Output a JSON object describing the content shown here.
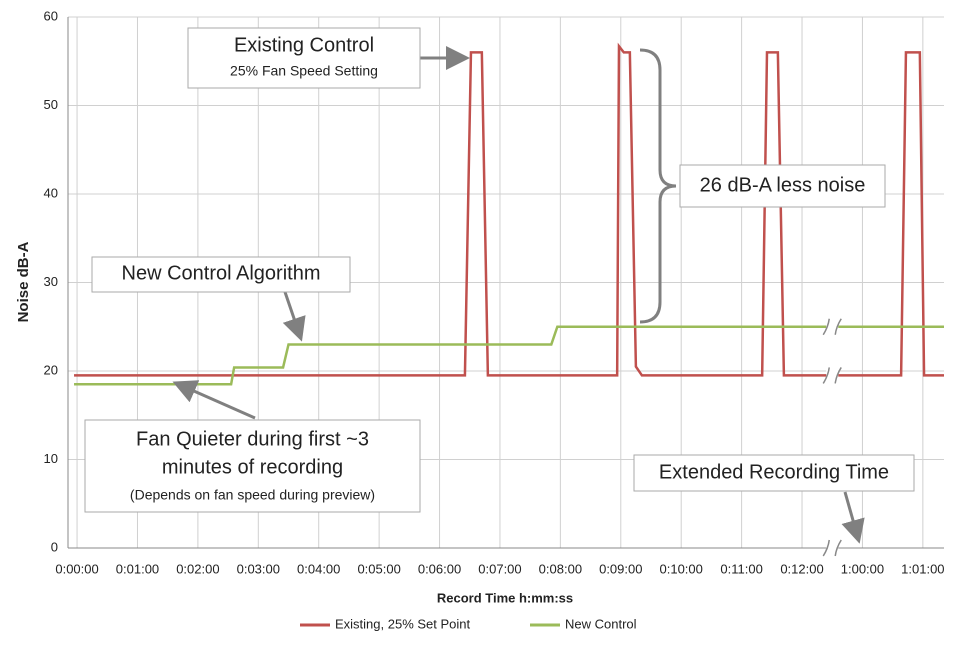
{
  "chart_data": {
    "type": "line",
    "y_label": "Noise dB-A",
    "x_label": "Record Time h:mm:ss",
    "ylim": [
      0,
      60
    ],
    "yticks": [
      0,
      10,
      20,
      30,
      40,
      50,
      60
    ],
    "xlim": [
      -0.15,
      61.35
    ],
    "axis_break": [
      12.5,
      59.5
    ],
    "xticks": [
      {
        "value": 0,
        "label": "0:00:00"
      },
      {
        "value": 1,
        "label": "0:01:00"
      },
      {
        "value": 2,
        "label": "0:02:00"
      },
      {
        "value": 3,
        "label": "0:03:00"
      },
      {
        "value": 4,
        "label": "0:04:00"
      },
      {
        "value": 5,
        "label": "0:05:00"
      },
      {
        "value": 6,
        "label": "0:06:00"
      },
      {
        "value": 7,
        "label": "0:07:00"
      },
      {
        "value": 8,
        "label": "0:08:00"
      },
      {
        "value": 9,
        "label": "0:09:00"
      },
      {
        "value": 10,
        "label": "0:10:00"
      },
      {
        "value": 11,
        "label": "0:11:00"
      },
      {
        "value": 12,
        "label": "0:12:00"
      },
      {
        "value": 60,
        "label": "1:00:00"
      },
      {
        "value": 61,
        "label": "1:01:00"
      }
    ],
    "grid": true,
    "series": [
      {
        "name": "Existing, 25% Set Point",
        "color": "#c0504d",
        "x": [
          -0.05,
          6.42,
          6.52,
          6.7,
          6.8,
          8.94,
          8.97,
          9.05,
          9.15,
          9.25,
          9.35,
          11.34,
          11.42,
          11.6,
          11.7,
          60.64,
          60.72,
          60.95,
          61.02,
          61.35
        ],
        "values": [
          19.5,
          19.5,
          56,
          56,
          19.5,
          19.5,
          56.7,
          56,
          56,
          20.5,
          19.5,
          19.5,
          56,
          56,
          19.5,
          19.5,
          56,
          56,
          19.5,
          19.5
        ]
      },
      {
        "name": "New Control",
        "color": "#9bbb59",
        "x": [
          -0.05,
          2.55,
          2.6,
          3.41,
          3.5,
          7.85,
          7.95,
          61.35
        ],
        "values": [
          18.5,
          18.5,
          20.4,
          20.4,
          23,
          23,
          25,
          25
        ]
      }
    ],
    "annotations": [
      {
        "lines": [
          "Existing Control",
          "25% Fan Speed Setting"
        ]
      },
      {
        "lines": [
          "26 dB-A less noise"
        ]
      },
      {
        "lines": [
          "New Control Algorithm"
        ]
      },
      {
        "lines": [
          "Fan Quieter during first ~3",
          "minutes of recording",
          "(Depends on fan speed during preview)"
        ]
      },
      {
        "lines": [
          "Extended Recording Time"
        ]
      }
    ]
  }
}
